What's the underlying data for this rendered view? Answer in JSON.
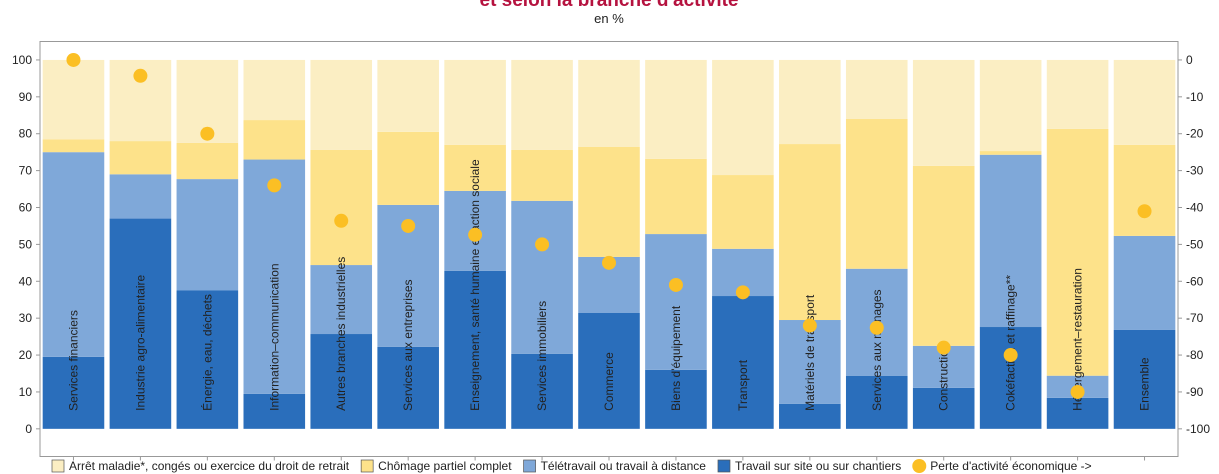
{
  "chart_data": {
    "type": "bar",
    "stacked": true,
    "title": "et selon la branche d'activité",
    "subtitle": "en %",
    "categories": [
      "Services financiers",
      "Industrie agro-alimentaire",
      "Énergie, eau, déchets",
      "Information–communication",
      "Autres branches industrielles",
      "Services aux entreprises",
      "Enseignement, santé humaine et action sociale",
      "Services immobiliers",
      "Commerce",
      "Biens d'équipement",
      "Transport",
      "Matériels de transport",
      "Services aux ménages",
      "Construction",
      "Cokéfaction et raffinage**",
      "Hébergement–restauration",
      "Ensemble"
    ],
    "series": [
      {
        "name": "Arrêt maladie*, congés ou exercice du droit de retrait",
        "color": "#fbeec3",
        "values": [
          21.5,
          22,
          22.5,
          16.3,
          24.4,
          19.5,
          23,
          24.4,
          23.6,
          26.8,
          31.2,
          22.8,
          16,
          28.7,
          24.7,
          18.7,
          23
        ]
      },
      {
        "name": "Chômage partiel complet",
        "color": "#fde28a",
        "values": [
          3.5,
          9,
          9.8,
          10.7,
          31.2,
          19.8,
          12.5,
          13.8,
          29.8,
          20.4,
          20,
          47.7,
          40.6,
          48.8,
          1,
          66.9,
          24.7
        ]
      },
      {
        "name": "Télétravail ou travail à distance",
        "color": "#7fa8d9",
        "values": [
          55.5,
          12,
          30.2,
          63.5,
          18.7,
          38.5,
          21.7,
          41.5,
          15.2,
          36.8,
          12.8,
          22.7,
          29,
          11.4,
          46.7,
          6,
          25.5
        ]
      },
      {
        "name": "Travail sur site ou sur chantiers",
        "color": "#2a6ebb",
        "values": [
          19.5,
          57,
          37.5,
          9.5,
          25.7,
          22.2,
          42.8,
          20.3,
          31.4,
          16,
          36,
          6.8,
          14.4,
          11.1,
          27.6,
          8.4,
          26.8
        ]
      },
      {
        "name": "Perte d'activité économique ->",
        "type": "scatter",
        "axis": "y2",
        "color": "#fbbf24",
        "values": [
          0,
          -4.3,
          -20,
          -34,
          -43.6,
          -45,
          -47.4,
          -50,
          -55,
          -61,
          -63,
          -72,
          -72.6,
          -78,
          -80,
          -90,
          -41
        ]
      }
    ],
    "ylim": [
      -7.5,
      105
    ],
    "yticks": [
      0,
      10,
      20,
      30,
      40,
      50,
      60,
      70,
      80,
      90,
      100
    ],
    "y2lim": [
      -107.5,
      5
    ],
    "y2ticks": [
      0,
      -10,
      -20,
      -30,
      -40,
      -50,
      -60,
      -70,
      -80,
      -90,
      -100
    ],
    "grid": false,
    "legend": "bottom"
  }
}
